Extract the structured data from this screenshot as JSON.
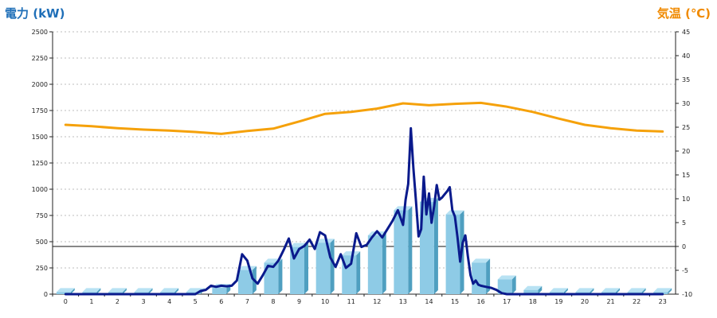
{
  "chart_data": {
    "type": "bar+line",
    "title_left": "電力 (kW)",
    "title_right": "気温 (℃)",
    "categories": [
      "0",
      "1",
      "2",
      "3",
      "4",
      "5",
      "6",
      "7",
      "8",
      "9",
      "10",
      "11",
      "12",
      "13",
      "14",
      "15",
      "16",
      "17",
      "18",
      "19",
      "20",
      "21",
      "22",
      "23"
    ],
    "y_left": {
      "min": 0,
      "max": 2500,
      "ticks": [
        0,
        250,
        500,
        750,
        1000,
        1250,
        1500,
        1750,
        2000,
        2250,
        2500
      ]
    },
    "y_right": {
      "min": -10,
      "max": 45,
      "ticks": [
        -10,
        -5,
        0,
        5,
        10,
        15,
        20,
        25,
        30,
        35,
        40,
        45
      ]
    },
    "grid": true,
    "series": [
      {
        "kind": "bar",
        "axis": "left",
        "color": "#8ecbe6",
        "values": [
          20,
          20,
          20,
          20,
          20,
          20,
          60,
          230,
          300,
          450,
          490,
          370,
          560,
          800,
          880,
          760,
          300,
          140,
          40,
          20,
          20,
          20,
          20,
          20
        ]
      },
      {
        "kind": "line",
        "axis": "left",
        "color": "#0a1a8c",
        "x": [
          0,
          0.5,
          1,
          1.5,
          2,
          2.5,
          3,
          3.5,
          4,
          4.5,
          5,
          5.2,
          5.4,
          5.6,
          5.8,
          6,
          6.2,
          6.4,
          6.6,
          6.8,
          7,
          7.2,
          7.4,
          7.6,
          7.8,
          8,
          8.2,
          8.4,
          8.6,
          8.8,
          9,
          9.2,
          9.4,
          9.6,
          9.8,
          10,
          10.2,
          10.4,
          10.6,
          10.8,
          11,
          11.2,
          11.4,
          11.6,
          11.8,
          12,
          12.2,
          12.4,
          12.6,
          12.8,
          13,
          13.1,
          13.2,
          13.3,
          13.4,
          13.5,
          13.6,
          13.7,
          13.8,
          13.9,
          14,
          14.1,
          14.2,
          14.3,
          14.4,
          14.5,
          14.6,
          14.7,
          14.8,
          14.9,
          15,
          15.1,
          15.2,
          15.3,
          15.4,
          15.5,
          15.6,
          15.7,
          15.8,
          15.9,
          16,
          16.2,
          16.4,
          16.6,
          16.8,
          17,
          17.2,
          17.4,
          17.6,
          17.8,
          18,
          18.5,
          19,
          20,
          21,
          22,
          23
        ],
        "values": [
          0,
          0,
          0,
          0,
          0,
          0,
          0,
          0,
          0,
          0,
          0,
          30,
          40,
          80,
          70,
          80,
          75,
          80,
          130,
          380,
          320,
          150,
          100,
          180,
          270,
          260,
          320,
          420,
          530,
          340,
          430,
          460,
          520,
          430,
          590,
          560,
          350,
          260,
          380,
          250,
          290,
          580,
          450,
          470,
          540,
          600,
          540,
          620,
          700,
          800,
          660,
          900,
          1050,
          1580,
          1200,
          880,
          550,
          620,
          1120,
          760,
          960,
          680,
          840,
          1040,
          900,
          920,
          950,
          980,
          1020,
          800,
          740,
          540,
          310,
          490,
          560,
          360,
          180,
          100,
          130,
          90,
          80,
          70,
          60,
          40,
          10,
          0,
          0,
          0,
          0,
          0,
          0,
          0,
          0,
          0,
          0,
          0,
          0
        ]
      },
      {
        "kind": "line",
        "axis": "right",
        "color": "#f5a10a",
        "x": [
          0,
          1,
          2,
          3,
          4,
          5,
          6,
          7,
          8,
          9,
          10,
          11,
          12,
          13,
          14,
          15,
          16,
          17,
          18,
          19,
          20,
          21,
          22,
          23
        ],
        "values": [
          25.5,
          25.2,
          24.8,
          24.5,
          24.3,
          24.0,
          23.6,
          24.2,
          24.7,
          26.2,
          27.8,
          28.2,
          28.9,
          30.0,
          29.6,
          29.9,
          30.1,
          29.3,
          28.2,
          26.8,
          25.5,
          24.8,
          24.3,
          24.1
        ]
      }
    ]
  }
}
